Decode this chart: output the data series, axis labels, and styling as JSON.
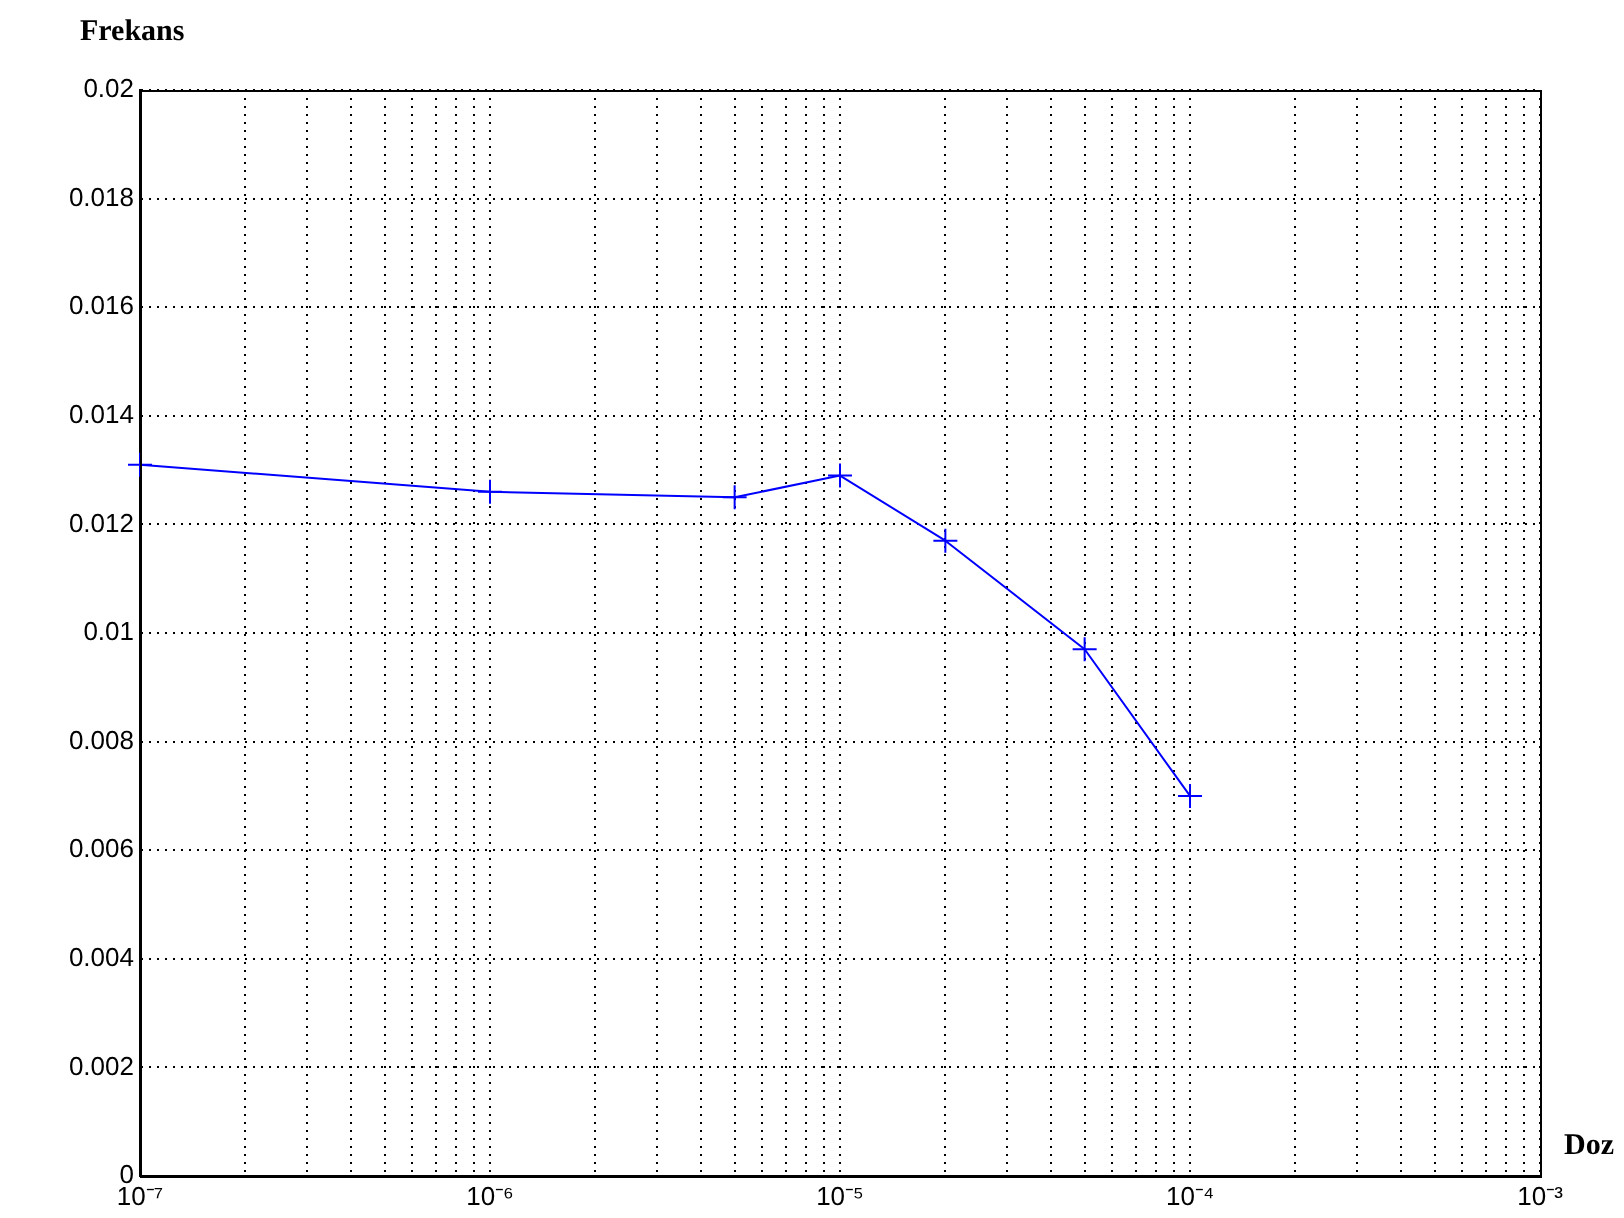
{
  "chart_data": {
    "type": "line",
    "xlabel": "Doz",
    "ylabel": "Frekans",
    "x": [
      1e-07,
      1e-06,
      5e-06,
      1e-05,
      2e-05,
      5e-05,
      0.0001
    ],
    "series": [
      {
        "color": "#0000ff",
        "values": [
          0.0131,
          0.0126,
          0.0125,
          0.0129,
          0.0117,
          0.0097,
          0.007
        ]
      }
    ],
    "log": "x",
    "xlim": [
      1e-07,
      0.001
    ],
    "xticks": [
      {
        "value": 1e-07,
        "label": "10⁻⁷"
      },
      {
        "value": 1e-06,
        "label": "10⁻⁶"
      },
      {
        "value": 1e-05,
        "label": "10⁻⁵"
      },
      {
        "value": 0.0001,
        "label": "10⁻⁴"
      },
      {
        "value": 0.001,
        "label": "10⁻³"
      }
    ],
    "ylim": [
      0,
      0.02
    ],
    "yticks": [
      0,
      0.002,
      0.004,
      0.006,
      0.008,
      0.01,
      0.012,
      0.014,
      0.016,
      0.018,
      0.02
    ],
    "grid": true,
    "legend": false,
    "marker": "cross",
    "line_style": "solid"
  }
}
